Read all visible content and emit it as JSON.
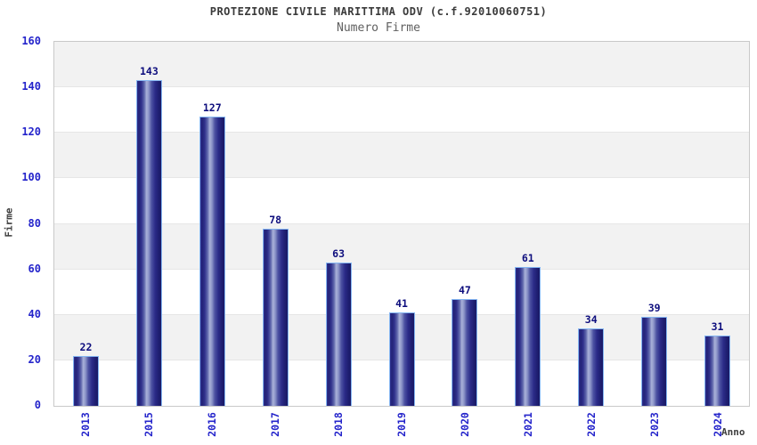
{
  "header": {
    "title": "PROTEZIONE CIVILE MARITTIMA ODV (c.f.92010060751)",
    "subtitle": "Numero Firme"
  },
  "chart_data": {
    "type": "bar",
    "title": "PROTEZIONE CIVILE MARITTIMA ODV (c.f.92010060751)",
    "subtitle": "Numero Firme",
    "categories": [
      "2013",
      "2015",
      "2016",
      "2017",
      "2018",
      "2019",
      "2020",
      "2021",
      "2022",
      "2023",
      "2024"
    ],
    "values": [
      22,
      143,
      127,
      78,
      63,
      41,
      47,
      61,
      34,
      39,
      31
    ],
    "xlabel": "Anno",
    "ylabel": "Firme",
    "ylim": [
      0,
      160
    ],
    "ytick_step": 20,
    "yticks": [
      0,
      20,
      40,
      60,
      80,
      100,
      120,
      140,
      160
    ],
    "legend_position": "none",
    "grid": "alternating horizontal bands, gray/white, 20-unit step",
    "x_tick_rotation": 90,
    "colors": {
      "bar_dark": "#232378",
      "bar_highlight": "#aab1d9",
      "bar_outline": "#85b6f2",
      "tick_label": "#2424cb",
      "value_label": "#0d0d7d",
      "title_text": "#3a3a3a",
      "subtitle_text": "#5f5f5f",
      "band_gray": "#f2f2f2",
      "plot_border": "#c9c9c9"
    }
  }
}
